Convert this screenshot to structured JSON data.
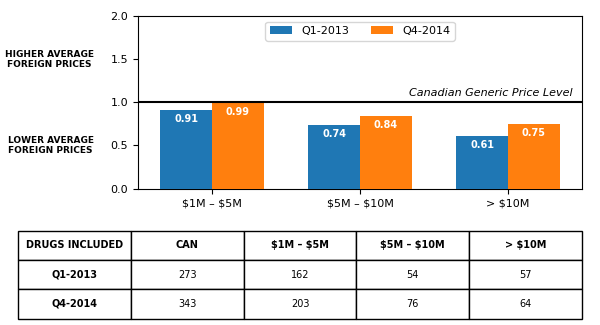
{
  "chart_data": {
    "type": "bar",
    "categories": [
      "$1M – $5M",
      "$5M – $10M",
      "> $10M"
    ],
    "series": [
      {
        "name": "Q1-2013",
        "values": [
          0.91,
          0.74,
          0.61
        ]
      },
      {
        "name": "Q4-2014",
        "values": [
          0.99,
          0.84,
          0.75
        ]
      }
    ],
    "ylim": [
      0.0,
      2.0
    ],
    "yticks": [
      0.0,
      0.5,
      1.0,
      1.5,
      2.0
    ],
    "legend": "upper center",
    "data_labels": true,
    "reference_line": {
      "value": 1.0,
      "label": "Canadian Generic Price Level",
      "color": "black"
    },
    "region_labels": {
      "above_reference": "HIGHER AVERAGE\nFOREIGN PRICES",
      "below_reference": "LOWER AVERAGE\nFOREIGN PRICES"
    },
    "table": {
      "header": [
        "DRUGS INCLUDED",
        "CAN",
        "$1M – $5M",
        "$5M – $10M",
        "> $10M"
      ],
      "rows": [
        [
          "Q1-2013",
          "273",
          "162",
          "54",
          "57"
        ],
        [
          "Q4-2014",
          "343",
          "203",
          "76",
          "64"
        ]
      ]
    }
  }
}
